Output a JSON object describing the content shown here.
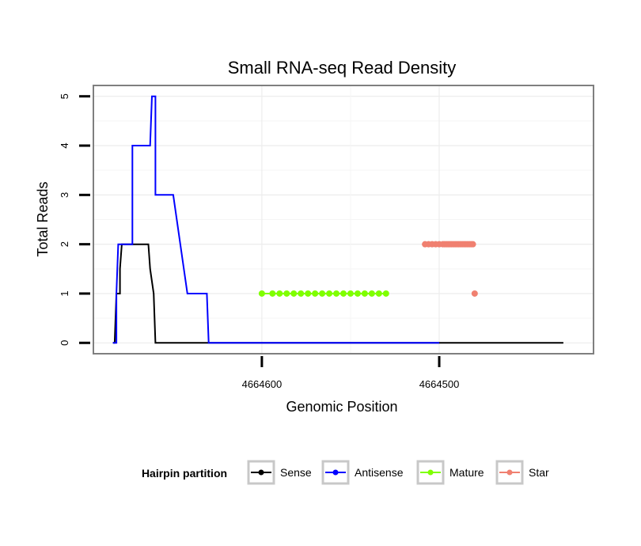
{
  "chart_data": {
    "type": "line",
    "title": "Small RNA-seq Read Density",
    "xlabel": "Genomic Position",
    "ylabel": "Total Reads",
    "x_reversed": true,
    "xlim": [
      4664695,
      4664413
    ],
    "ylim": [
      -0.22,
      5.22
    ],
    "y_ticks": [
      0,
      1,
      2,
      3,
      4,
      5
    ],
    "x_ticks": [
      4664600,
      4664500
    ],
    "x_tick_labels": [
      "4664600",
      "4664500"
    ],
    "grid": true,
    "legend": {
      "title": "Hairpin partition",
      "position": "bottom",
      "entries": [
        "Sense",
        "Antisense",
        "Mature",
        "Star"
      ]
    },
    "series": [
      {
        "name": "Sense",
        "color": "#000000",
        "x": [
          4664684,
          4664683,
          4664682,
          4664680,
          4664680,
          4664679,
          4664665,
          4664664,
          4664663,
          4664661,
          4664661,
          4664660,
          4664615,
          4664606,
          4664584,
          4664577,
          4664537,
          4664530,
          4664530,
          4664524,
          4664524,
          4664520,
          4664520,
          4664510,
          4664505,
          4664500,
          4664499,
          4664430
        ],
        "y": [
          0,
          0,
          1,
          1,
          1.5,
          2,
          2,
          2,
          1.5,
          1,
          1,
          0,
          0,
          0,
          0,
          0,
          0,
          0,
          0,
          0,
          0,
          0,
          0,
          0,
          0,
          0,
          0,
          0
        ],
        "draw": "polyline"
      },
      {
        "name": "Antisense",
        "color": "#0000ff",
        "x": [
          4664684,
          4664682,
          4664682,
          4664681,
          4664681,
          4664673,
          4664673,
          4664669,
          4664663,
          4664662,
          4664661,
          4664660,
          4664660,
          4664650,
          4664650,
          4664642,
          4664640,
          4664631,
          4664630,
          4664606,
          4664530,
          4664500
        ],
        "y": [
          0,
          0,
          1,
          2,
          2,
          2,
          4,
          4,
          4,
          5,
          5,
          5,
          3,
          3,
          3,
          1,
          1,
          1,
          0,
          0,
          0,
          0
        ],
        "draw": "polyline"
      },
      {
        "name": "Mature",
        "color": "#7fff00",
        "x": [
          4664600,
          4664594,
          4664590,
          4664586,
          4664582,
          4664578,
          4664574,
          4664570,
          4664566,
          4664562,
          4664558,
          4664554,
          4664550,
          4664546,
          4664542,
          4664538,
          4664534,
          4664530
        ],
        "y": [
          1,
          1,
          1,
          1,
          1,
          1,
          1,
          1,
          1,
          1,
          1,
          1,
          1,
          1,
          1,
          1,
          1,
          1
        ],
        "draw": "points"
      },
      {
        "name": "Star",
        "color": "#f08070",
        "x": [
          4664508,
          4664506,
          4664504,
          4664502,
          4664500,
          4664498,
          4664497,
          4664496,
          4664495,
          4664494,
          4664493,
          4664492,
          4664491,
          4664490,
          4664489,
          4664488,
          4664487,
          4664486,
          4664485,
          4664484,
          4664483,
          4664482,
          4664481,
          4664480
        ],
        "y": [
          2,
          2,
          2,
          2,
          2,
          2,
          2,
          2,
          2,
          2,
          2,
          2,
          2,
          2,
          2,
          2,
          2,
          2,
          2,
          2,
          2,
          2,
          2,
          1
        ],
        "draw": "points"
      }
    ]
  }
}
